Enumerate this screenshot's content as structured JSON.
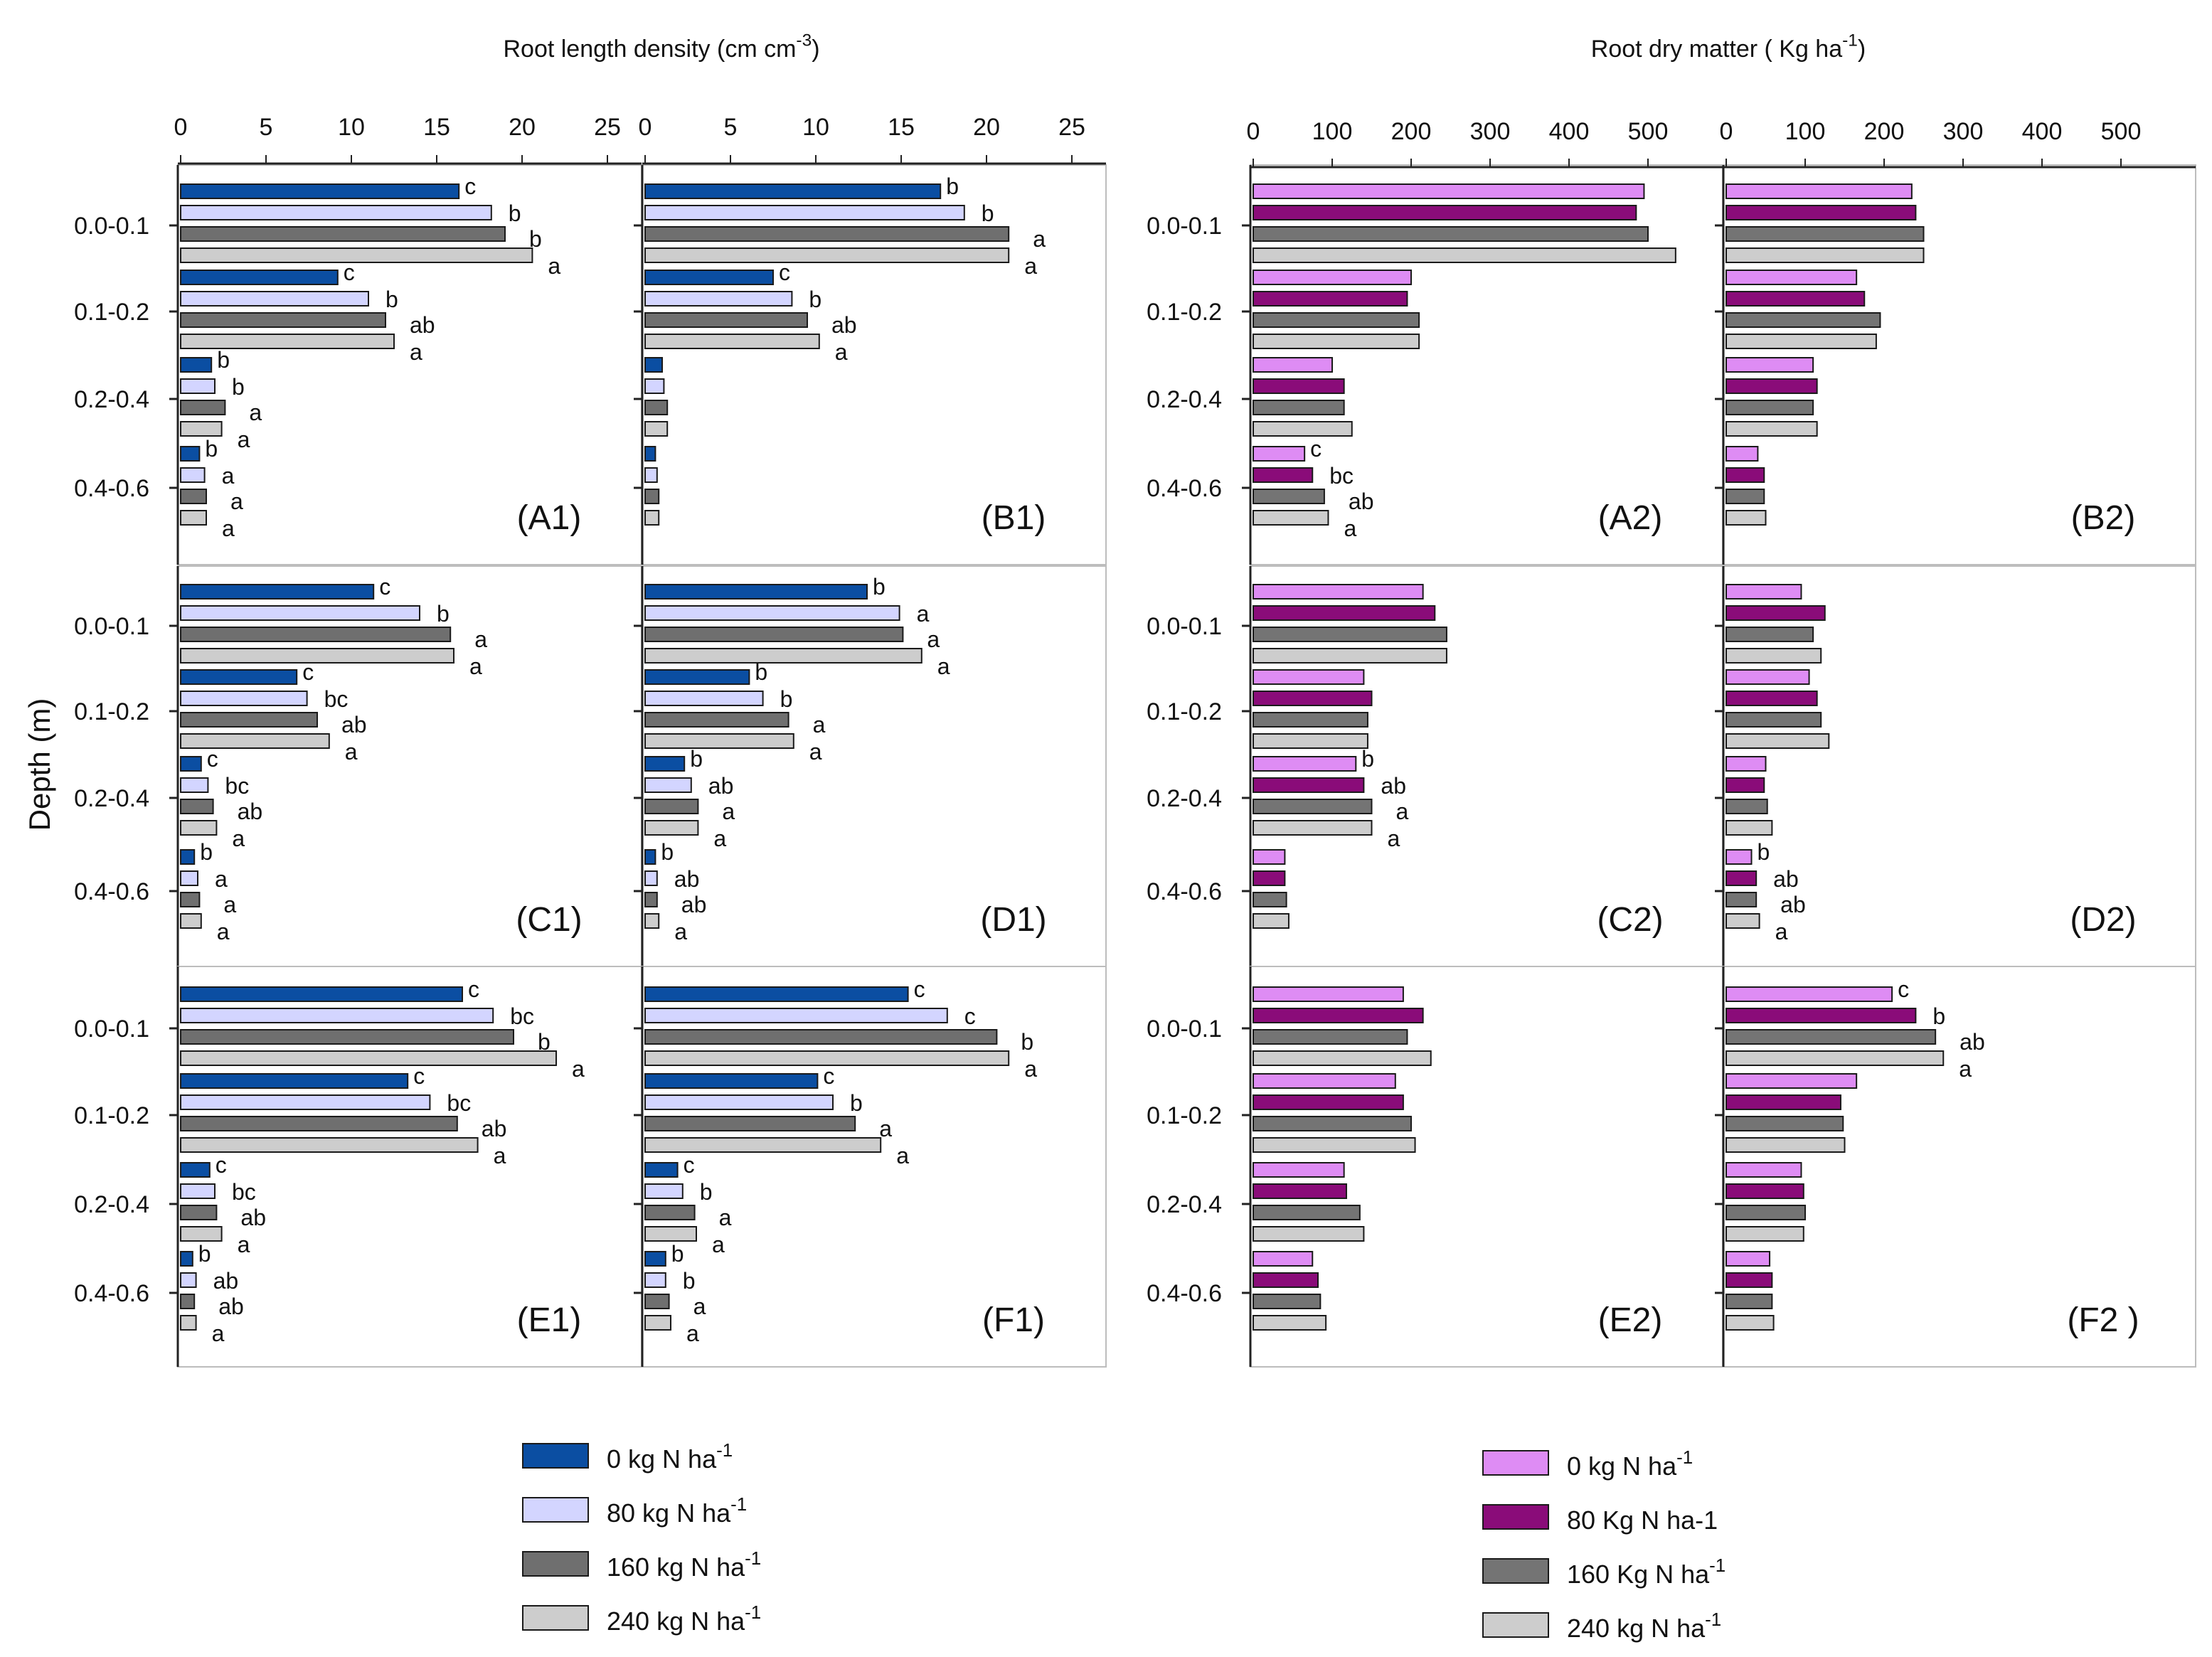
{
  "figure": {
    "y_axis_label": "Depth (m)",
    "depth_labels": [
      "0.0-0.1",
      "0.1-0.2",
      "0.2-0.4",
      "0.4-0.6"
    ]
  },
  "groups": {
    "rld": {
      "title": "Root length density (cm cm",
      "title_sup": "-3",
      "title_end": ")",
      "ticks": [
        0,
        5,
        10,
        15,
        20,
        25
      ],
      "colors": [
        "#0b4ea2",
        "#d3d5ff",
        "#6f6f6f",
        "#cdcdcd"
      ],
      "legend": [
        {
          "text": "0 kg N ha",
          "sup": "-1"
        },
        {
          "text": "80 kg N ha",
          "sup": "-1"
        },
        {
          "text": "160 kg N ha",
          "sup": "-1"
        },
        {
          "text": "240 kg N ha",
          "sup": "-1"
        }
      ]
    },
    "rdm": {
      "title": "Root dry matter ( Kg ha",
      "title_sup": "-1",
      "title_end": ")",
      "ticks": [
        0,
        100,
        200,
        300,
        400,
        500
      ],
      "colors": [
        "#de8cf4",
        "#8a0c79",
        "#747474",
        "#cdcdcd"
      ],
      "legend": [
        {
          "text": "0 kg N ha",
          "sup": "-1"
        },
        {
          "text": "80 Kg N ha-1",
          "sup": ""
        },
        {
          "text": "160 Kg N ha",
          "sup": "-1"
        },
        {
          "text": "240 kg N ha",
          "sup": "-1"
        }
      ]
    }
  },
  "chart_data": [
    {
      "type": "bar",
      "panel": "(A1)",
      "group": "rld",
      "xlim": [
        0,
        27
      ],
      "orientation": "horizontal",
      "categories": [
        "0.0-0.1",
        "0.1-0.2",
        "0.2-0.4",
        "0.4-0.6"
      ],
      "series": [
        {
          "name": "0 kg N ha-1",
          "values": [
            16.3,
            9.2,
            1.8,
            1.1
          ],
          "labels": [
            "c",
            "c",
            "b",
            "b"
          ]
        },
        {
          "name": "80 kg N ha-1",
          "values": [
            18.2,
            11.0,
            2.0,
            1.4
          ],
          "labels": [
            "b",
            "b",
            "b",
            "a"
          ]
        },
        {
          "name": "160 kg N ha-1",
          "values": [
            19.0,
            12.0,
            2.6,
            1.5
          ],
          "labels": [
            "b",
            "ab",
            "a",
            "a"
          ]
        },
        {
          "name": "240 kg N ha-1",
          "values": [
            20.6,
            12.5,
            2.4,
            1.5
          ],
          "labels": [
            "a",
            "a",
            "a",
            "a"
          ]
        }
      ]
    },
    {
      "type": "bar",
      "panel": "(B1)",
      "group": "rld",
      "xlim": [
        0,
        27
      ],
      "orientation": "horizontal",
      "categories": [
        "0.0-0.1",
        "0.1-0.2",
        "0.2-0.4",
        "0.4-0.6"
      ],
      "series": [
        {
          "name": "0 kg N ha-1",
          "values": [
            17.3,
            7.5,
            1.0,
            0.6
          ],
          "labels": [
            "b",
            "c",
            "",
            ""
          ]
        },
        {
          "name": "80 kg N ha-1",
          "values": [
            18.7,
            8.6,
            1.1,
            0.7
          ],
          "labels": [
            "b",
            "b",
            "",
            ""
          ]
        },
        {
          "name": "160 kg N ha-1",
          "values": [
            21.3,
            9.5,
            1.3,
            0.8
          ],
          "labels": [
            "a",
            "ab",
            "",
            ""
          ]
        },
        {
          "name": "240 kg N ha-1",
          "values": [
            21.3,
            10.2,
            1.3,
            0.8
          ],
          "labels": [
            "a",
            "a",
            "",
            ""
          ]
        }
      ]
    },
    {
      "type": "bar",
      "panel": "(C1)",
      "group": "rld",
      "xlim": [
        0,
        27
      ],
      "orientation": "horizontal",
      "categories": [
        "0.0-0.1",
        "0.1-0.2",
        "0.2-0.4",
        "0.4-0.6"
      ],
      "series": [
        {
          "name": "0 kg N ha-1",
          "values": [
            11.3,
            6.8,
            1.2,
            0.8
          ],
          "labels": [
            "c",
            "c",
            "c",
            "b"
          ]
        },
        {
          "name": "80 kg N ha-1",
          "values": [
            14.0,
            7.4,
            1.6,
            1.0
          ],
          "labels": [
            "b",
            "bc",
            "bc",
            "a"
          ]
        },
        {
          "name": "160 kg N ha-1",
          "values": [
            15.8,
            8.0,
            1.9,
            1.1
          ],
          "labels": [
            "a",
            "ab",
            "ab",
            "a"
          ]
        },
        {
          "name": "240 kg N ha-1",
          "values": [
            16.0,
            8.7,
            2.1,
            1.2
          ],
          "labels": [
            "a",
            "a",
            "a",
            "a"
          ]
        }
      ]
    },
    {
      "type": "bar",
      "panel": "(D1)",
      "group": "rld",
      "xlim": [
        0,
        27
      ],
      "orientation": "horizontal",
      "categories": [
        "0.0-0.1",
        "0.1-0.2",
        "0.2-0.4",
        "0.4-0.6"
      ],
      "series": [
        {
          "name": "0 kg N ha-1",
          "values": [
            13.0,
            6.1,
            2.3,
            0.6
          ],
          "labels": [
            "b",
            "b",
            "b",
            "b"
          ]
        },
        {
          "name": "80 kg N ha-1",
          "values": [
            14.9,
            6.9,
            2.7,
            0.7
          ],
          "labels": [
            "a",
            "b",
            "ab",
            "ab"
          ]
        },
        {
          "name": "160 kg N ha-1",
          "values": [
            15.1,
            8.4,
            3.1,
            0.7
          ],
          "labels": [
            "a",
            "a",
            "a",
            "ab"
          ]
        },
        {
          "name": "240 kg N ha-1",
          "values": [
            16.2,
            8.7,
            3.1,
            0.8
          ],
          "labels": [
            "a",
            "a",
            "a",
            "a"
          ]
        }
      ]
    },
    {
      "type": "bar",
      "panel": "(E1)",
      "group": "rld",
      "xlim": [
        0,
        27
      ],
      "orientation": "horizontal",
      "categories": [
        "0.0-0.1",
        "0.1-0.2",
        "0.2-0.4",
        "0.4-0.6"
      ],
      "series": [
        {
          "name": "0 kg N ha-1",
          "values": [
            16.5,
            13.3,
            1.7,
            0.7
          ],
          "labels": [
            "c",
            "c",
            "c",
            "b"
          ]
        },
        {
          "name": "80 kg N ha-1",
          "values": [
            18.3,
            14.6,
            2.0,
            0.9
          ],
          "labels": [
            "bc",
            "bc",
            "bc",
            "ab"
          ]
        },
        {
          "name": "160 kg N ha-1",
          "values": [
            19.5,
            16.2,
            2.1,
            0.8
          ],
          "labels": [
            "b",
            "ab",
            "ab",
            "ab"
          ]
        },
        {
          "name": "240 kg N ha-1",
          "values": [
            22.0,
            17.4,
            2.4,
            0.9
          ],
          "labels": [
            "a",
            "a",
            "a",
            "a"
          ]
        }
      ]
    },
    {
      "type": "bar",
      "panel": "(F1)",
      "group": "rld",
      "xlim": [
        0,
        27
      ],
      "orientation": "horizontal",
      "categories": [
        "0.0-0.1",
        "0.1-0.2",
        "0.2-0.4",
        "0.4-0.6"
      ],
      "series": [
        {
          "name": "0 kg N ha-1",
          "values": [
            15.4,
            10.1,
            1.9,
            1.2
          ],
          "labels": [
            "c",
            "c",
            "c",
            "b"
          ]
        },
        {
          "name": "80 kg N ha-1",
          "values": [
            17.7,
            11.0,
            2.2,
            1.2
          ],
          "labels": [
            "c",
            "b",
            "b",
            "b"
          ]
        },
        {
          "name": "160 kg N ha-1",
          "values": [
            20.6,
            12.3,
            2.9,
            1.4
          ],
          "labels": [
            "b",
            "a",
            "a",
            "a"
          ]
        },
        {
          "name": "240 kg N ha-1",
          "values": [
            21.3,
            13.8,
            3.0,
            1.5
          ],
          "labels": [
            "a",
            "a",
            "a",
            "a"
          ]
        }
      ]
    },
    {
      "type": "bar",
      "panel": "(A2)",
      "group": "rdm",
      "xlim": [
        0,
        590
      ],
      "orientation": "horizontal",
      "categories": [
        "0.0-0.1",
        "0.1-0.2",
        "0.2-0.4",
        "0.4-0.6"
      ],
      "series": [
        {
          "name": "0 kg N ha-1",
          "values": [
            495,
            200,
            100,
            65
          ],
          "labels": [
            "",
            "",
            "",
            "c"
          ]
        },
        {
          "name": "80 Kg N ha-1",
          "values": [
            485,
            195,
            115,
            75
          ],
          "labels": [
            "",
            "",
            "",
            "bc"
          ]
        },
        {
          "name": "160 Kg N ha-1",
          "values": [
            500,
            210,
            115,
            90
          ],
          "labels": [
            "",
            "",
            "",
            "ab"
          ]
        },
        {
          "name": "240 kg N ha-1",
          "values": [
            535,
            210,
            125,
            95
          ],
          "labels": [
            "",
            "",
            "",
            "a"
          ]
        }
      ]
    },
    {
      "type": "bar",
      "panel": "(B2)",
      "group": "rdm",
      "xlim": [
        0,
        590
      ],
      "orientation": "horizontal",
      "categories": [
        "0.0-0.1",
        "0.1-0.2",
        "0.2-0.4",
        "0.4-0.6"
      ],
      "series": [
        {
          "name": "0 kg N ha-1",
          "values": [
            235,
            165,
            110,
            40
          ],
          "labels": [
            "",
            "",
            "",
            ""
          ]
        },
        {
          "name": "80 Kg N ha-1",
          "values": [
            240,
            175,
            115,
            48
          ],
          "labels": [
            "",
            "",
            "",
            ""
          ]
        },
        {
          "name": "160 Kg N ha-1",
          "values": [
            250,
            195,
            110,
            48
          ],
          "labels": [
            "",
            "",
            "",
            ""
          ]
        },
        {
          "name": "240 kg N ha-1",
          "values": [
            250,
            190,
            115,
            50
          ],
          "labels": [
            "",
            "",
            "",
            ""
          ]
        }
      ]
    },
    {
      "type": "bar",
      "panel": "(C2)",
      "group": "rdm",
      "xlim": [
        0,
        590
      ],
      "orientation": "horizontal",
      "categories": [
        "0.0-0.1",
        "0.1-0.2",
        "0.2-0.4",
        "0.4-0.6"
      ],
      "series": [
        {
          "name": "0 kg N ha-1",
          "values": [
            215,
            140,
            130,
            40
          ],
          "labels": [
            "",
            "",
            "b",
            ""
          ]
        },
        {
          "name": "80 Kg N ha-1",
          "values": [
            230,
            150,
            140,
            40
          ],
          "labels": [
            "",
            "",
            "ab",
            ""
          ]
        },
        {
          "name": "160 Kg N ha-1",
          "values": [
            245,
            145,
            150,
            42
          ],
          "labels": [
            "",
            "",
            "a",
            ""
          ]
        },
        {
          "name": "240 kg N ha-1",
          "values": [
            245,
            145,
            150,
            45
          ],
          "labels": [
            "",
            "",
            "a",
            ""
          ]
        }
      ]
    },
    {
      "type": "bar",
      "panel": "(D2)",
      "group": "rdm",
      "xlim": [
        0,
        590
      ],
      "orientation": "horizontal",
      "categories": [
        "0.0-0.1",
        "0.1-0.2",
        "0.2-0.4",
        "0.4-0.6"
      ],
      "series": [
        {
          "name": "0 kg N ha-1",
          "values": [
            95,
            105,
            50,
            32
          ],
          "labels": [
            "",
            "",
            "",
            "b"
          ]
        },
        {
          "name": "80 Kg N ha-1",
          "values": [
            125,
            115,
            48,
            38
          ],
          "labels": [
            "",
            "",
            "",
            "ab"
          ]
        },
        {
          "name": "160 Kg N ha-1",
          "values": [
            110,
            120,
            52,
            38
          ],
          "labels": [
            "",
            "",
            "",
            "ab"
          ]
        },
        {
          "name": "240 kg N ha-1",
          "values": [
            120,
            130,
            58,
            42
          ],
          "labels": [
            "",
            "",
            "",
            "a"
          ]
        }
      ]
    },
    {
      "type": "bar",
      "panel": "(E2)",
      "group": "rdm",
      "xlim": [
        0,
        590
      ],
      "orientation": "horizontal",
      "categories": [
        "0.0-0.1",
        "0.1-0.2",
        "0.2-0.4",
        "0.4-0.6"
      ],
      "series": [
        {
          "name": "0 kg N ha-1",
          "values": [
            190,
            180,
            115,
            75
          ],
          "labels": [
            "",
            "",
            "",
            ""
          ]
        },
        {
          "name": "80 Kg N ha-1",
          "values": [
            215,
            190,
            118,
            82
          ],
          "labels": [
            "",
            "",
            "",
            ""
          ]
        },
        {
          "name": "160 Kg N ha-1",
          "values": [
            195,
            200,
            135,
            85
          ],
          "labels": [
            "",
            "",
            "",
            ""
          ]
        },
        {
          "name": "240 kg N ha-1",
          "values": [
            225,
            205,
            140,
            92
          ],
          "labels": [
            "",
            "",
            "",
            ""
          ]
        }
      ]
    },
    {
      "type": "bar",
      "panel": "(F2 )",
      "group": "rdm",
      "xlim": [
        0,
        590
      ],
      "orientation": "horizontal",
      "categories": [
        "0.0-0.1",
        "0.1-0.2",
        "0.2-0.4",
        "0.4-0.6"
      ],
      "series": [
        {
          "name": "0 kg N ha-1",
          "values": [
            210,
            165,
            95,
            55
          ],
          "labels": [
            "c",
            "",
            "",
            ""
          ]
        },
        {
          "name": "80 Kg N ha-1",
          "values": [
            240,
            145,
            98,
            58
          ],
          "labels": [
            "b",
            "",
            "",
            ""
          ]
        },
        {
          "name": "160 Kg N ha-1",
          "values": [
            265,
            148,
            100,
            58
          ],
          "labels": [
            "ab",
            "",
            "",
            ""
          ]
        },
        {
          "name": "240 kg N ha-1",
          "values": [
            275,
            150,
            98,
            60
          ],
          "labels": [
            "a",
            "",
            "",
            ""
          ]
        }
      ]
    }
  ]
}
